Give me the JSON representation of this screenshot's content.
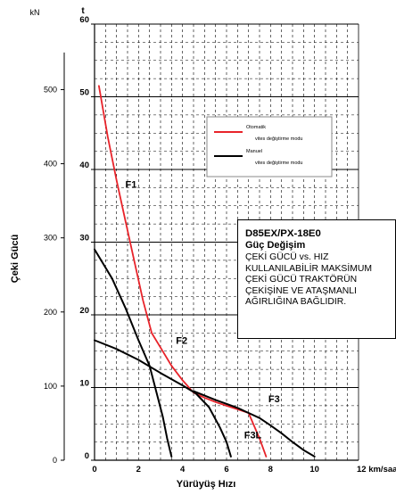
{
  "chart_data": {
    "type": "line",
    "title": "",
    "xlabel": "Yürüyüş Hızı",
    "ylabel": "Çeki Gücü",
    "x_unit": "12 km/saat",
    "y_unit_left": "kN",
    "y_unit_right": "t",
    "xlim": [
      0,
      12
    ],
    "x_ticks": [
      0,
      2,
      4,
      6,
      8,
      10
    ],
    "ylim_t": [
      0,
      60
    ],
    "y_ticks_t": [
      0,
      10,
      20,
      30,
      40,
      50,
      60
    ],
    "y_ticks_kN": [
      0,
      100,
      200,
      300,
      400,
      500
    ],
    "grid": true,
    "legend": {
      "placement": "upper-right",
      "entries": [
        {
          "line1": "Otomatik",
          "line2": "vites değiştirme modu",
          "color": "#e8232a"
        },
        {
          "line1": "Manuel",
          "line2": "vites değiştirme modu",
          "color": "#000000"
        }
      ]
    },
    "series": [
      {
        "name": "Otomatik",
        "color": "#e8232a",
        "x": [
          0.2,
          0.6,
          1.0,
          1.4,
          1.8,
          2.2,
          2.6,
          3.0,
          3.5,
          4.0,
          4.5,
          5.0,
          5.5,
          6.0,
          6.5,
          7.0,
          7.5,
          7.8
        ],
        "y": [
          51.5,
          44.5,
          38.5,
          33.0,
          27.5,
          22.0,
          17.5,
          15.5,
          13.0,
          11.0,
          9.3,
          8.6,
          8.0,
          7.5,
          7.0,
          6.5,
          3.0,
          0.5
        ]
      },
      {
        "name": "Manuel F1",
        "color": "#000000",
        "x": [
          0.0,
          0.3,
          0.8,
          1.4,
          2.0,
          2.5,
          2.8,
          3.1,
          3.3,
          3.5
        ],
        "y": [
          29.0,
          27.5,
          25.0,
          21.0,
          16.5,
          13.0,
          9.5,
          6.0,
          3.0,
          0.5
        ]
      },
      {
        "name": "Manuel F2",
        "color": "#000000",
        "x": [
          0.0,
          1.0,
          2.0,
          3.0,
          4.0,
          4.6,
          5.2,
          5.7,
          6.0,
          6.2
        ],
        "y": [
          16.5,
          15.3,
          13.8,
          12.0,
          10.3,
          9.2,
          7.3,
          4.5,
          2.5,
          0.5
        ]
      },
      {
        "name": "Manuel F3",
        "color": "#000000",
        "x": [
          4.5,
          5.5,
          6.5,
          7.0,
          7.5,
          8.0,
          8.5,
          9.0,
          9.5,
          10.0
        ],
        "y": [
          9.5,
          8.3,
          7.2,
          6.5,
          5.8,
          4.8,
          3.7,
          2.5,
          1.4,
          0.5
        ]
      }
    ],
    "annotations": [
      "F1",
      "F2",
      "F3",
      "F3L"
    ]
  },
  "note": {
    "title": "D85EX/PX-18E0",
    "subtitle": "Güç Değişim",
    "lines": [
      "ÇEKİ GÜCÜ vs. HIZ",
      "KULLANILABİLİR MAKSİMUM",
      "ÇEKİ GÜCÜ TRAKTÖRÜN",
      "ÇEKİŞİNE VE ATAŞMANLI",
      "AĞIRLIĞINA BAĞLIDIR."
    ]
  }
}
